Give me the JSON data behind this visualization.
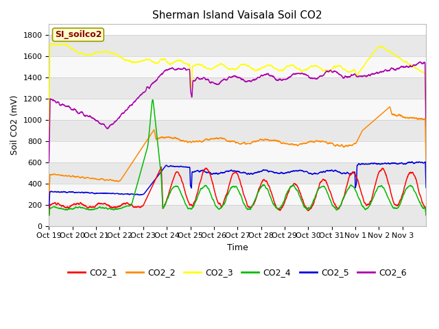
{
  "title": "Sherman Island Vaisala Soil CO2",
  "ylabel": "Soil CO2 (mV)",
  "xlabel": "Time",
  "legend_label": "SI_soilco2",
  "ylim": [
    0,
    1900
  ],
  "yticks": [
    0,
    200,
    400,
    600,
    800,
    1000,
    1200,
    1400,
    1600,
    1800
  ],
  "x_tick_labels": [
    "Oct 19",
    "Oct 20",
    "Oct 21",
    "Oct 22",
    "Oct 23",
    "Oct 24",
    "Oct 25",
    "Oct 26",
    "Oct 27",
    "Oct 28",
    "Oct 29",
    "Oct 30",
    "Oct 31",
    "Nov 1",
    "Nov 2",
    "Nov 3"
  ],
  "colors": {
    "CO2_1": "#ff0000",
    "CO2_2": "#ff8800",
    "CO2_3": "#ffff00",
    "CO2_4": "#00bb00",
    "CO2_5": "#0000dd",
    "CO2_6": "#aa00aa"
  },
  "legend_box_facecolor": "#ffffcc",
  "legend_box_edgecolor": "#999900",
  "background_color": "#ffffff",
  "band_dark": "#e8e8e8",
  "band_light": "#f8f8f8",
  "title_fontsize": 11,
  "axis_label_fontsize": 9,
  "tick_fontsize": 8
}
